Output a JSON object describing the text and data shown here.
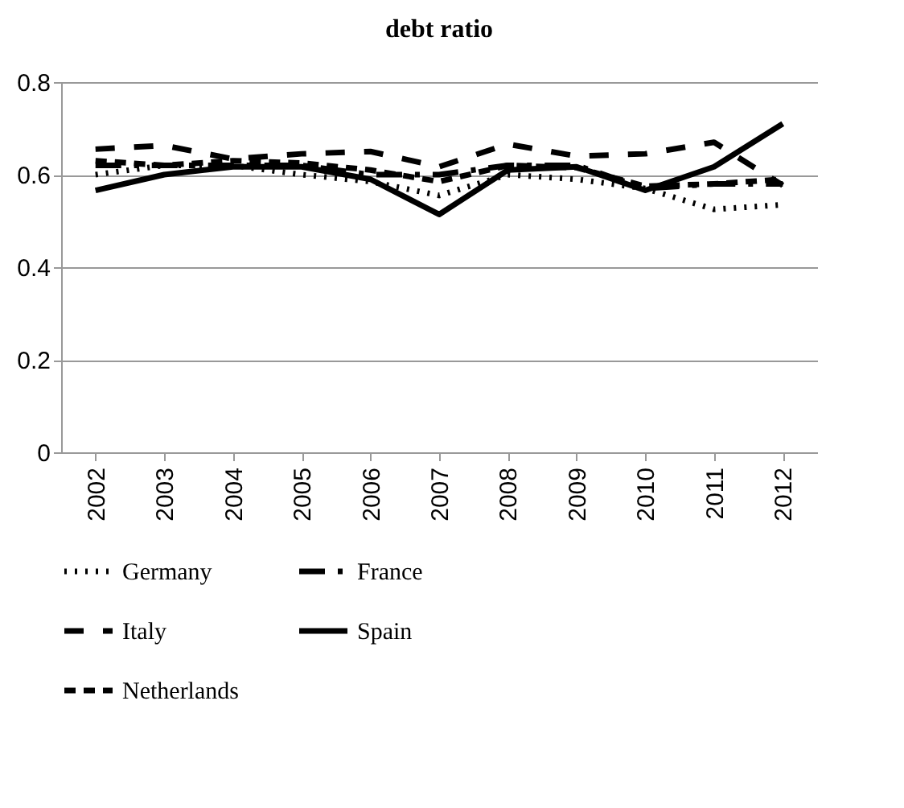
{
  "chart_data": {
    "type": "line",
    "title": "debt ratio",
    "categories": [
      "2002",
      "2003",
      "2004",
      "2005",
      "2006",
      "2007",
      "2008",
      "2009",
      "2010",
      "2011",
      "2012"
    ],
    "series": [
      {
        "name": "Germany",
        "color": "#000000",
        "line_style": "dotted",
        "values": [
          0.6,
          0.62,
          0.62,
          0.6,
          0.585,
          0.555,
          0.6,
          0.59,
          0.57,
          0.525,
          0.535
        ]
      },
      {
        "name": "France",
        "color": "#000000",
        "line_style": "dashed",
        "values": [
          0.62,
          0.62,
          0.62,
          0.62,
          0.6,
          0.6,
          0.62,
          0.62,
          0.57,
          0.58,
          0.58
        ]
      },
      {
        "name": "Italy",
        "color": "#000000",
        "line_style": "dashed",
        "values": [
          0.655,
          0.663,
          0.634,
          0.645,
          0.65,
          0.617,
          0.666,
          0.64,
          0.645,
          0.67,
          0.577
        ]
      },
      {
        "name": "Spain",
        "color": "#000000",
        "line_style": "solid",
        "values": [
          0.566,
          0.6,
          0.617,
          0.617,
          0.59,
          0.514,
          0.61,
          0.617,
          0.566,
          0.617,
          0.71
        ]
      },
      {
        "name": "Netherlands",
        "color": "#000000",
        "line_style": "dashed",
        "values": [
          0.63,
          0.62,
          0.63,
          0.625,
          0.61,
          0.585,
          0.62,
          0.615,
          0.575,
          0.58,
          0.59
        ]
      }
    ],
    "ylim": [
      0,
      0.8
    ],
    "yticks": [
      0,
      0.2,
      0.4,
      0.6,
      0.8
    ],
    "grid": "y",
    "legend": "bottom",
    "marker": "none"
  }
}
